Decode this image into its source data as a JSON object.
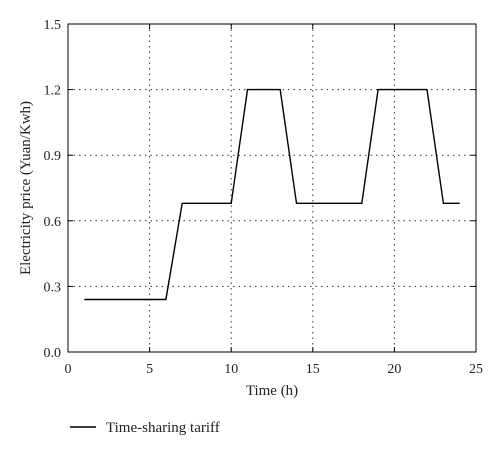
{
  "chart_data": {
    "type": "line",
    "xlabel": "Time (h)",
    "ylabel": "Electricity price (Yuan/Kwh)",
    "xlim": [
      0,
      25
    ],
    "ylim": [
      0,
      1.5
    ],
    "x_ticks": [
      "0",
      "5",
      "10",
      "15",
      "20",
      "25"
    ],
    "y_ticks": [
      "0.0",
      "0.3",
      "0.6",
      "0.9",
      "1.2",
      "1.5"
    ],
    "grid": "dotted",
    "legend_position": "bottom-left",
    "series": [
      {
        "name": "Time-sharing tariff",
        "color": "#000000",
        "x": [
          1,
          6,
          7,
          10,
          11,
          13,
          14,
          18,
          19,
          22,
          23,
          24
        ],
        "y": [
          0.24,
          0.24,
          0.68,
          0.68,
          1.2,
          1.2,
          0.68,
          0.68,
          1.2,
          1.2,
          0.68,
          0.68
        ]
      }
    ]
  }
}
